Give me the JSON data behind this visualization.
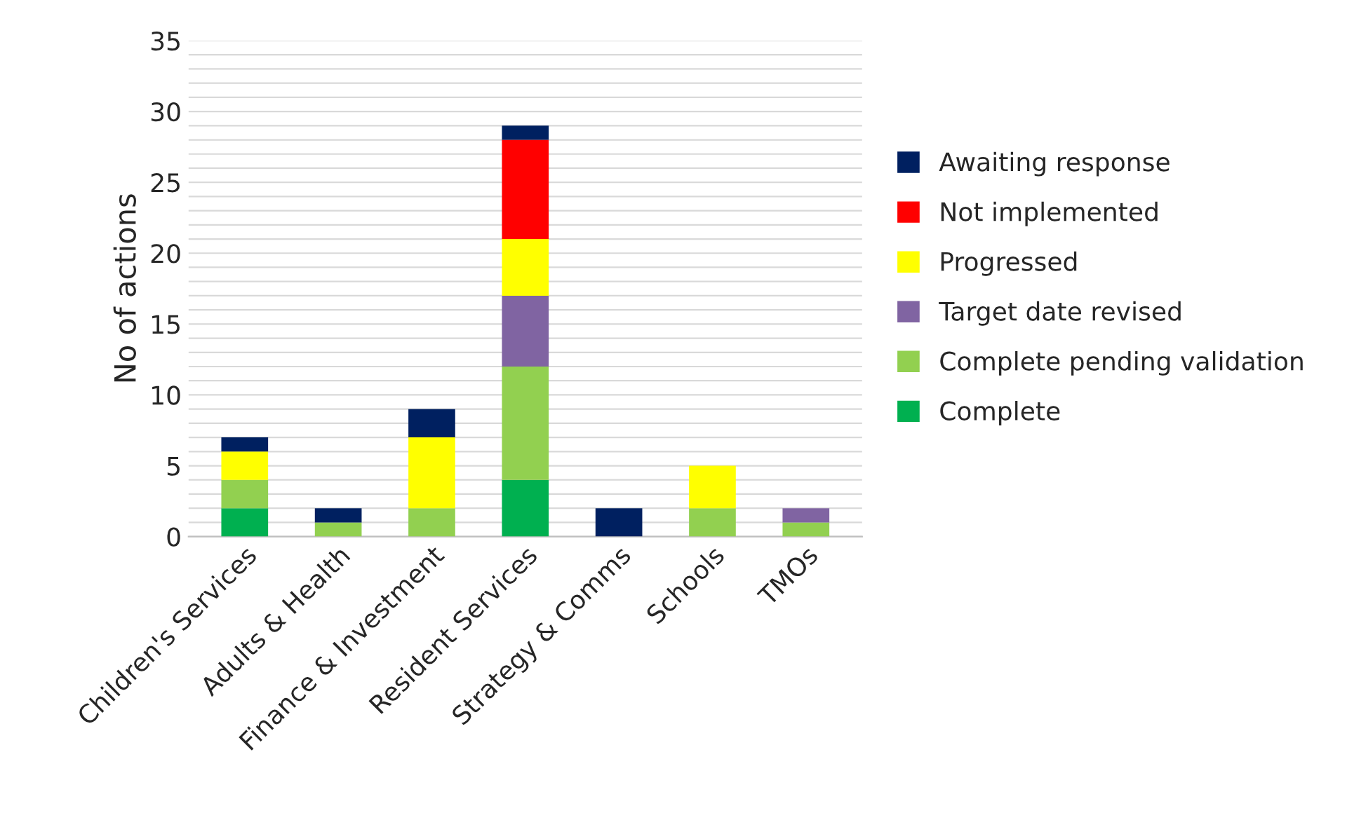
{
  "chart_data": {
    "type": "bar",
    "stacked": true,
    "ylabel": "No of actions",
    "categories": [
      "Children's Services",
      "Adults & Health",
      "Finance & Investment",
      "Resident Services",
      "Strategy & Comms",
      "Schools",
      "TMOs"
    ],
    "series": [
      {
        "name": "Complete",
        "color": "#00b050",
        "values": [
          2,
          0,
          0,
          4,
          0,
          0,
          0
        ]
      },
      {
        "name": "Complete pending validation",
        "color": "#92d050",
        "values": [
          2,
          1,
          2,
          8,
          0,
          2,
          1
        ]
      },
      {
        "name": "Target date revised",
        "color": "#8064a2",
        "values": [
          0,
          0,
          0,
          5,
          0,
          0,
          1
        ]
      },
      {
        "name": "Progressed",
        "color": "#ffff00",
        "values": [
          2,
          0,
          5,
          4,
          0,
          3,
          0
        ]
      },
      {
        "name": "Not implemented",
        "color": "#ff0000",
        "values": [
          0,
          0,
          0,
          7,
          0,
          0,
          0
        ]
      },
      {
        "name": "Awaiting response",
        "color": "#002060",
        "values": [
          1,
          1,
          2,
          1,
          2,
          0,
          0
        ]
      }
    ],
    "ylim": [
      0,
      35
    ],
    "yticks": [
      0,
      {
        "value": 1,
        "label": null
      },
      {
        "value": 2,
        "label": null
      },
      {
        "value": 3,
        "label": null
      },
      {
        "value": 4,
        "label": null
      },
      5,
      {
        "value": 6,
        "label": null
      },
      {
        "value": 7,
        "label": null
      },
      {
        "value": 8,
        "label": null
      },
      {
        "value": 9,
        "label": null
      },
      10,
      {
        "value": 11,
        "label": null
      },
      {
        "value": 12,
        "label": null
      },
      {
        "value": 13,
        "label": null
      },
      {
        "value": 14,
        "label": null
      },
      15,
      {
        "value": 16,
        "label": null
      },
      {
        "value": 17,
        "label": null
      },
      {
        "value": 18,
        "label": null
      },
      {
        "value": 19,
        "label": null
      },
      20,
      {
        "value": 21,
        "label": null
      },
      {
        "value": 22,
        "label": null
      },
      {
        "value": 23,
        "label": null
      },
      {
        "value": 24,
        "label": null
      },
      25,
      {
        "value": 26,
        "label": null
      },
      {
        "value": 27,
        "label": null
      },
      {
        "value": 28,
        "label": null
      },
      {
        "value": 29,
        "label": null
      },
      30,
      {
        "value": 31,
        "label": null
      },
      {
        "value": 32,
        "label": null
      },
      {
        "value": 33,
        "label": null
      },
      {
        "value": 34,
        "label": null
      },
      35
    ],
    "grid": "y",
    "legend": "right"
  }
}
